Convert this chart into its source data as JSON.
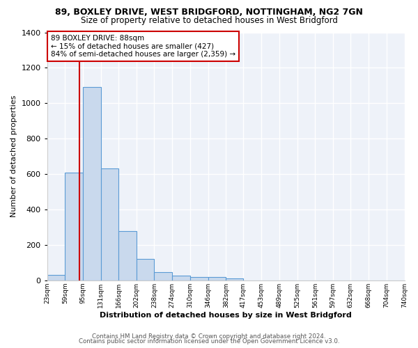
{
  "title_line1": "89, BOXLEY DRIVE, WEST BRIDGFORD, NOTTINGHAM, NG2 7GN",
  "title_line2": "Size of property relative to detached houses in West Bridgford",
  "xlabel": "Distribution of detached houses by size in West Bridgford",
  "ylabel": "Number of detached properties",
  "bar_color": "#c9d9ed",
  "bar_edge_color": "#5b9bd5",
  "background_color": "#eef2f9",
  "grid_color": "#ffffff",
  "bin_edges": [
    23,
    59,
    95,
    131,
    166,
    202,
    238,
    274,
    310,
    346,
    382,
    417,
    453,
    489,
    525,
    561,
    597,
    632,
    668,
    704,
    740
  ],
  "bin_labels": [
    "23sqm",
    "59sqm",
    "95sqm",
    "131sqm",
    "166sqm",
    "202sqm",
    "238sqm",
    "274sqm",
    "310sqm",
    "346sqm",
    "382sqm",
    "417sqm",
    "453sqm",
    "489sqm",
    "525sqm",
    "561sqm",
    "597sqm",
    "632sqm",
    "668sqm",
    "704sqm",
    "740sqm"
  ],
  "bar_heights": [
    30,
    610,
    1090,
    630,
    280,
    120,
    45,
    25,
    20,
    18,
    12,
    0,
    0,
    0,
    0,
    0,
    0,
    0,
    0,
    0
  ],
  "subject_value": 88,
  "subject_line_color": "#cc0000",
  "annotation_text": "89 BOXLEY DRIVE: 88sqm\n← 15% of detached houses are smaller (427)\n84% of semi-detached houses are larger (2,359) →",
  "annotation_box_color": "#ffffff",
  "annotation_box_edge_color": "#cc0000",
  "ylim": [
    0,
    1400
  ],
  "yticks": [
    0,
    200,
    400,
    600,
    800,
    1000,
    1200,
    1400
  ],
  "footer_line1": "Contains HM Land Registry data © Crown copyright and database right 2024.",
  "footer_line2": "Contains public sector information licensed under the Open Government Licence v3.0."
}
